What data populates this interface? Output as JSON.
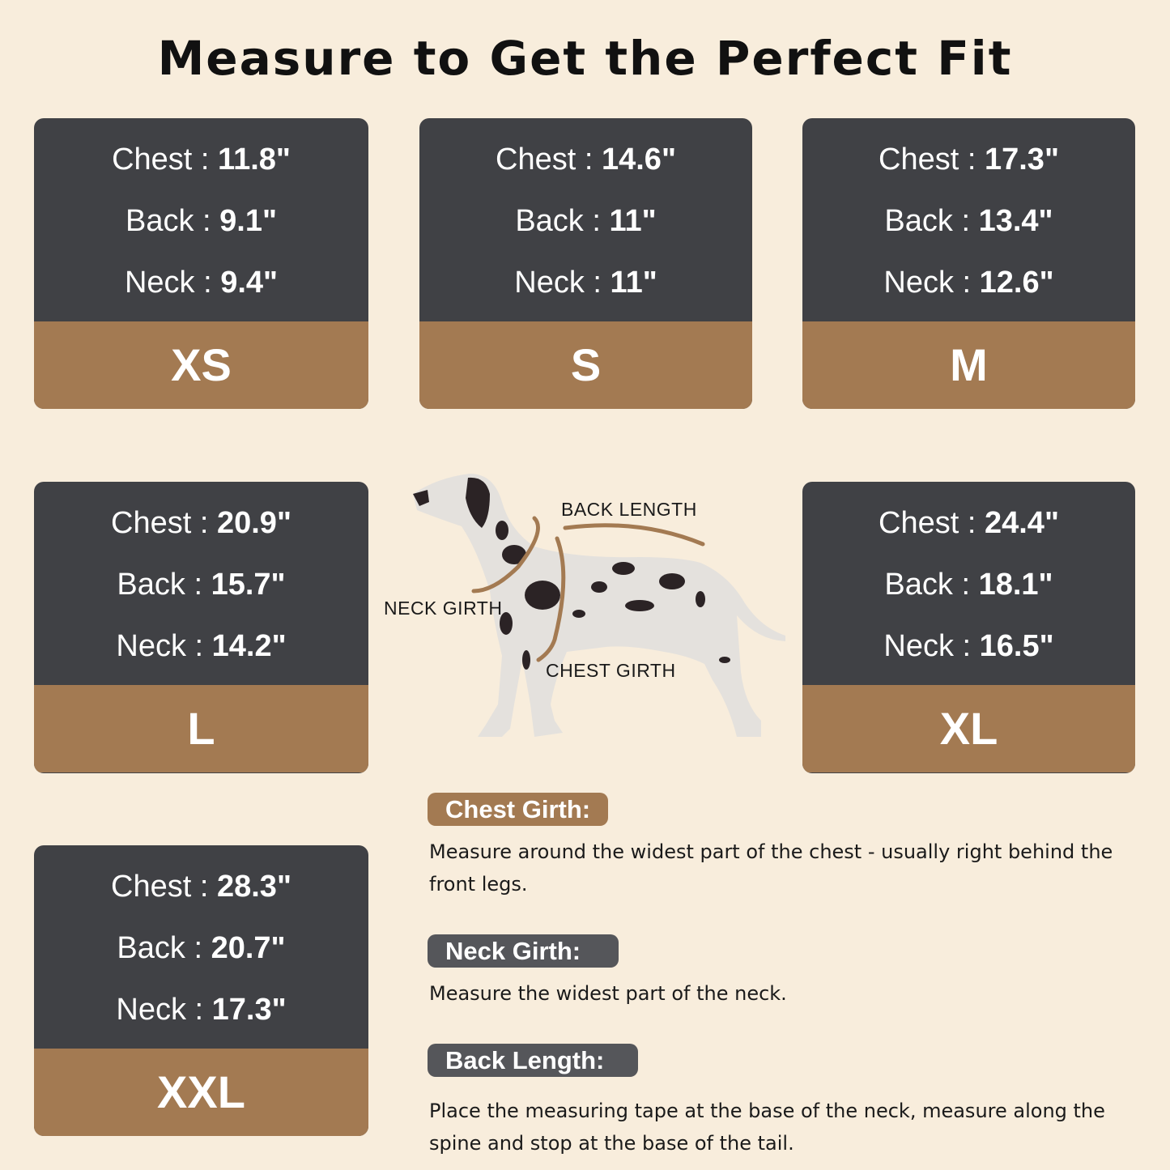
{
  "title": "Measure to Get the Perfect Fit",
  "colors": {
    "background": "#f8eddc",
    "card_dark": "#404145",
    "accent_brown": "#a37a52"
  },
  "sizes": [
    {
      "size": "XS",
      "chest_label": "Chest :",
      "chest": "11.8\"",
      "back_label": "Back :",
      "back": "9.1\"",
      "neck_label": "Neck :",
      "neck": "9.4\""
    },
    {
      "size": "S",
      "chest_label": "Chest :",
      "chest": "14.6\"",
      "back_label": "Back :",
      "back": "11\"",
      "neck_label": "Neck :",
      "neck": "11\""
    },
    {
      "size": "M",
      "chest_label": "Chest :",
      "chest": "17.3\"",
      "back_label": "Back :",
      "back": "13.4\"",
      "neck_label": "Neck :",
      "neck": "12.6\""
    },
    {
      "size": "L",
      "chest_label": "Chest :",
      "chest": "20.9\"",
      "back_label": "Back :",
      "back": "15.7\"",
      "neck_label": "Neck :",
      "neck": "14.2\""
    },
    {
      "size": "XL",
      "chest_label": "Chest :",
      "chest": "24.4\"",
      "back_label": "Back :",
      "back": "18.1\"",
      "neck_label": "Neck :",
      "neck": "16.5\""
    },
    {
      "size": "XXL",
      "chest_label": "Chest :",
      "chest": "28.3\"",
      "back_label": "Back :",
      "back": "20.7\"",
      "neck_label": "Neck :",
      "neck": "17.3\""
    }
  ],
  "diagram": {
    "back_length": "BACK LENGTH",
    "neck_girth": "NECK GIRTH",
    "chest_girth": "CHEST GIRTH"
  },
  "instructions": [
    {
      "heading": "Chest Girth:",
      "text": "Measure around the widest part of the chest - usually right behind the front legs."
    },
    {
      "heading": "Neck Girth:",
      "text": "Measure the widest part of the neck."
    },
    {
      "heading": "Back Length:",
      "text": "Place the measuring tape at the base of the neck, measure along the spine and stop at the base of the tail."
    }
  ]
}
